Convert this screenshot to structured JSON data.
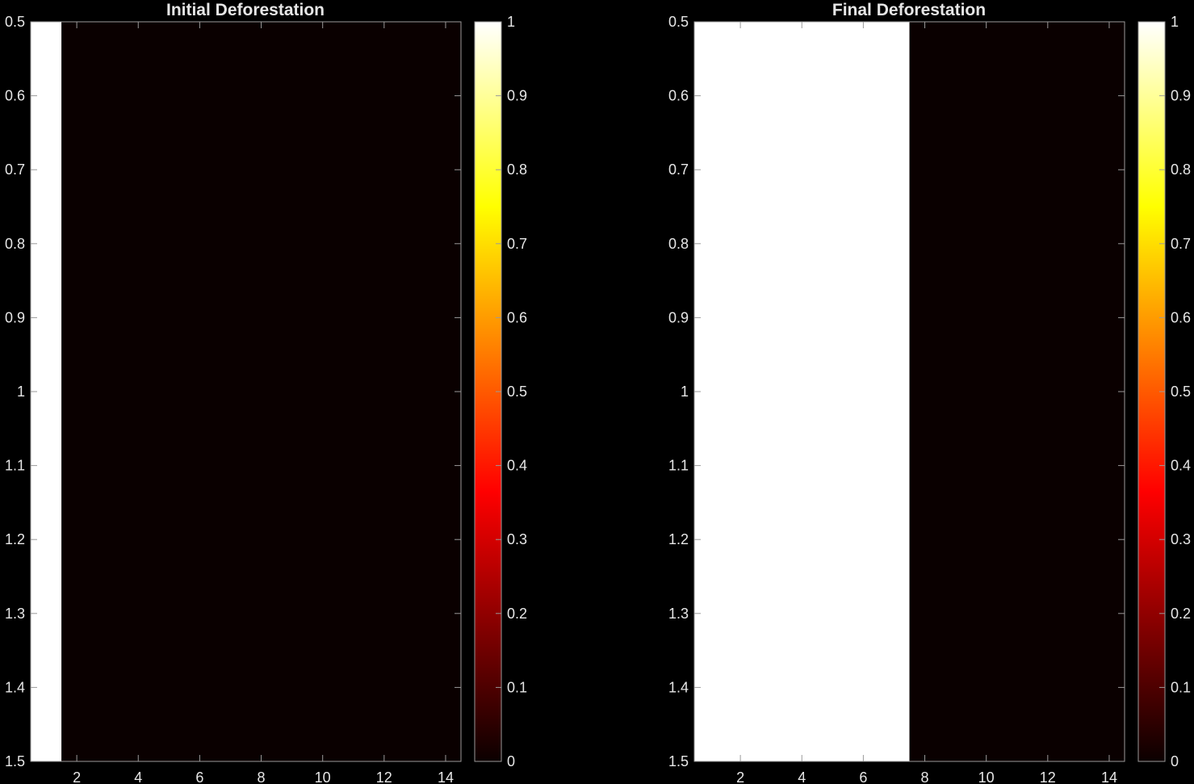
{
  "chart_data": [
    {
      "type": "heatmap",
      "title": "Initial Deforestation",
      "xlim": [
        0.5,
        14.5
      ],
      "ylim": [
        0.5,
        1.5
      ],
      "y_reversed": true,
      "x_ticks": [
        2,
        4,
        6,
        8,
        10,
        12,
        14
      ],
      "y_ticks": [
        0.5,
        0.6,
        0.7,
        0.8,
        0.9,
        1,
        1.1,
        1.2,
        1.3,
        1.4,
        1.5
      ],
      "x_tick_labels": [
        "2",
        "4",
        "6",
        "8",
        "10",
        "12",
        "14"
      ],
      "y_tick_labels": [
        "0.5",
        "0.6",
        "0.7",
        "0.8",
        "0.9",
        "1",
        "1.1",
        "1.2",
        "1.3",
        "1.4",
        "1.5"
      ],
      "x": [
        1,
        2,
        3,
        4,
        5,
        6,
        7,
        8,
        9,
        10,
        11,
        12,
        13,
        14
      ],
      "y": [
        1
      ],
      "values": [
        [
          1,
          0,
          0,
          0,
          0,
          0,
          0,
          0,
          0,
          0,
          0,
          0,
          0,
          0
        ]
      ],
      "colorbar": {
        "colormap": "hot",
        "range": [
          0,
          1
        ],
        "ticks": [
          0,
          0.1,
          0.2,
          0.3,
          0.4,
          0.5,
          0.6,
          0.7,
          0.8,
          0.9,
          1
        ],
        "tick_labels": [
          "0",
          "0.1",
          "0.2",
          "0.3",
          "0.4",
          "0.5",
          "0.6",
          "0.7",
          "0.8",
          "0.9",
          "1"
        ]
      }
    },
    {
      "type": "heatmap",
      "title": "Final Deforestation",
      "xlim": [
        0.5,
        14.5
      ],
      "ylim": [
        0.5,
        1.5
      ],
      "y_reversed": true,
      "x_ticks": [
        2,
        4,
        6,
        8,
        10,
        12,
        14
      ],
      "y_ticks": [
        0.5,
        0.6,
        0.7,
        0.8,
        0.9,
        1,
        1.1,
        1.2,
        1.3,
        1.4,
        1.5
      ],
      "x_tick_labels": [
        "2",
        "4",
        "6",
        "8",
        "10",
        "12",
        "14"
      ],
      "y_tick_labels": [
        "0.5",
        "0.6",
        "0.7",
        "0.8",
        "0.9",
        "1",
        "1.1",
        "1.2",
        "1.3",
        "1.4",
        "1.5"
      ],
      "x": [
        1,
        2,
        3,
        4,
        5,
        6,
        7,
        8,
        9,
        10,
        11,
        12,
        13,
        14
      ],
      "y": [
        1
      ],
      "values": [
        [
          1,
          1,
          1,
          1,
          1,
          1,
          1,
          0,
          0,
          0,
          0,
          0,
          0,
          0
        ]
      ],
      "colorbar": {
        "colormap": "hot",
        "range": [
          0,
          1
        ],
        "ticks": [
          0,
          0.1,
          0.2,
          0.3,
          0.4,
          0.5,
          0.6,
          0.7,
          0.8,
          0.9,
          1
        ],
        "tick_labels": [
          "0",
          "0.1",
          "0.2",
          "0.3",
          "0.4",
          "0.5",
          "0.6",
          "0.7",
          "0.8",
          "0.9",
          "1"
        ]
      }
    }
  ],
  "colors": {
    "background": "#000000",
    "axes_face": "#040204",
    "axes_line": "#9a9a9a",
    "text": "#e6e6e6",
    "hot_stops": [
      "#0b0000",
      "#ff0000",
      "#ffff00",
      "#ffffff"
    ]
  }
}
